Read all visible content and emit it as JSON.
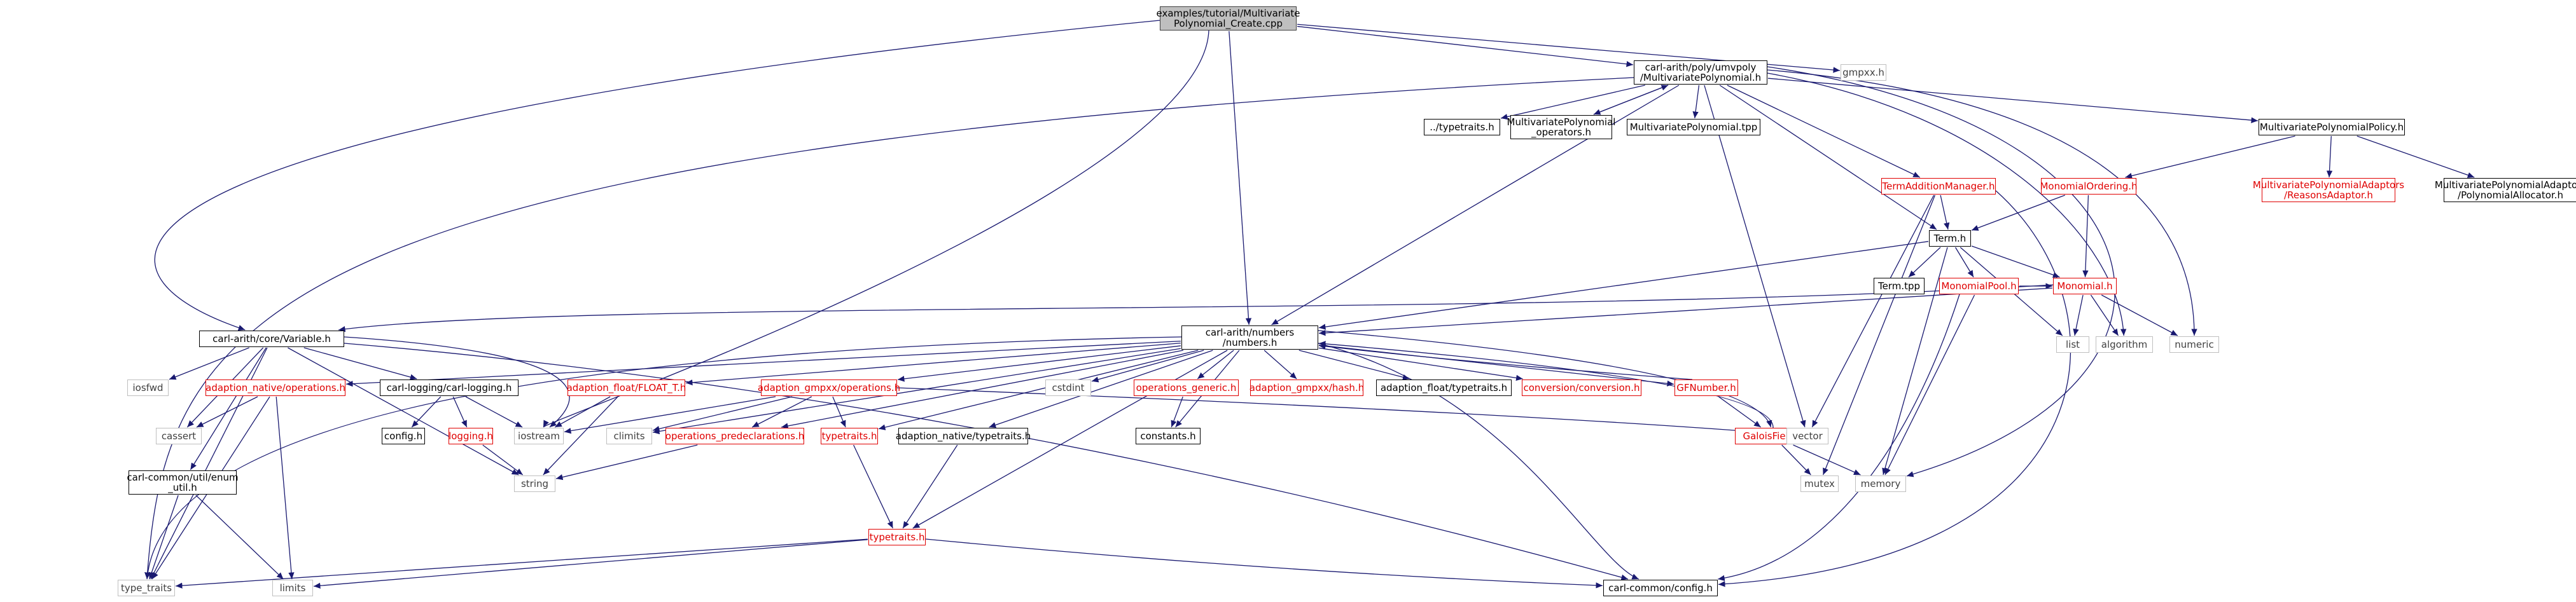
{
  "graph": {
    "edge_color": "#191970",
    "colors": {
      "black": "#000000",
      "red": "#e00000",
      "grey": "#bfbfbf",
      "root_fill": "#bfbfbf"
    },
    "nodes": [
      {
        "id": "root",
        "style": "root",
        "lines": [
          "examples/tutorial/Multivariate",
          "Polynomial_Create.cpp"
        ]
      },
      {
        "id": "mvpoly",
        "style": "black",
        "lines": [
          "carl-arith/poly/umvpoly",
          "/MultivariatePolynomial.h"
        ]
      },
      {
        "id": "gmpxx",
        "style": "grey",
        "lines": [
          "gmpxx.h"
        ]
      },
      {
        "id": "typetraits_rel",
        "style": "black",
        "lines": [
          "../typetraits.h"
        ]
      },
      {
        "id": "mvpoly_ops",
        "style": "black",
        "lines": [
          "MultivariatePolynomial",
          "_operators.h"
        ]
      },
      {
        "id": "mvpoly_tpp",
        "style": "black",
        "lines": [
          "MultivariatePolynomial.tpp"
        ]
      },
      {
        "id": "mvpolicy",
        "style": "black",
        "lines": [
          "MultivariatePolynomialPolicy.h"
        ]
      },
      {
        "id": "reasons_adaptor",
        "style": "red",
        "lines": [
          "MultivariatePolynomialAdaptors",
          "/ReasonsAdaptor.h"
        ]
      },
      {
        "id": "poly_allocator",
        "style": "black",
        "lines": [
          "MultivariatePolynomialAdaptors",
          "/PolynomialAllocator.h"
        ]
      },
      {
        "id": "termadd",
        "style": "red",
        "lines": [
          "TermAdditionManager.h"
        ]
      },
      {
        "id": "monordering",
        "style": "red",
        "lines": [
          "MonomialOrdering.h"
        ]
      },
      {
        "id": "term",
        "style": "black",
        "lines": [
          "Term.h"
        ]
      },
      {
        "id": "term_tpp",
        "style": "black",
        "lines": [
          "Term.tpp"
        ]
      },
      {
        "id": "monpool",
        "style": "red",
        "lines": [
          "MonomialPool.h"
        ]
      },
      {
        "id": "monomial",
        "style": "red",
        "lines": [
          "Monomial.h"
        ]
      },
      {
        "id": "list",
        "style": "grey",
        "lines": [
          "list"
        ]
      },
      {
        "id": "algorithm",
        "style": "grey",
        "lines": [
          "algorithm"
        ]
      },
      {
        "id": "numeric",
        "style": "grey",
        "lines": [
          "numeric"
        ]
      },
      {
        "id": "variable",
        "style": "black",
        "lines": [
          "carl-arith/core/Variable.h"
        ]
      },
      {
        "id": "numbers",
        "style": "black",
        "lines": [
          "carl-arith/numbers",
          "/numbers.h"
        ]
      },
      {
        "id": "iosfwd",
        "style": "grey",
        "lines": [
          "iosfwd"
        ]
      },
      {
        "id": "adapt_native_ops",
        "style": "red",
        "lines": [
          "adaption_native/operations.h"
        ]
      },
      {
        "id": "logging_h",
        "style": "black",
        "lines": [
          "carl-logging/carl-logging.h"
        ]
      },
      {
        "id": "adapt_float",
        "style": "red",
        "lines": [
          "adaption_float/FLOAT_T.h"
        ]
      },
      {
        "id": "adapt_gmpxx_ops",
        "style": "red",
        "lines": [
          "adaption_gmpxx/operations.h"
        ]
      },
      {
        "id": "cstdint",
        "style": "grey",
        "lines": [
          "cstdint"
        ]
      },
      {
        "id": "ops_generic",
        "style": "red",
        "lines": [
          "operations_generic.h"
        ]
      },
      {
        "id": "adapt_gmpxx_hash",
        "style": "red",
        "lines": [
          "adaption_gmpxx/hash.h"
        ]
      },
      {
        "id": "adapt_float_tt",
        "style": "black",
        "lines": [
          "adaption_float/typetraits.h"
        ]
      },
      {
        "id": "conversion",
        "style": "red",
        "lines": [
          "conversion/conversion.h"
        ]
      },
      {
        "id": "gfnumber",
        "style": "red",
        "lines": [
          "GFNumber.h"
        ]
      },
      {
        "id": "galoisfield",
        "style": "red",
        "lines": [
          "GaloisField.h"
        ]
      },
      {
        "id": "cassert",
        "style": "grey",
        "lines": [
          "cassert"
        ]
      },
      {
        "id": "config_h",
        "style": "black",
        "lines": [
          "config.h"
        ]
      },
      {
        "id": "logging",
        "style": "red",
        "lines": [
          "logging.h"
        ]
      },
      {
        "id": "iostream",
        "style": "grey",
        "lines": [
          "iostream"
        ]
      },
      {
        "id": "climits",
        "style": "grey",
        "lines": [
          "climits"
        ]
      },
      {
        "id": "ops_predecl",
        "style": "red",
        "lines": [
          "operations_predeclarations.h"
        ]
      },
      {
        "id": "typetraits_red",
        "style": "red",
        "lines": [
          "typetraits.h"
        ]
      },
      {
        "id": "adapt_native_tt",
        "style": "black",
        "lines": [
          "adaption_native/typetraits.h"
        ]
      },
      {
        "id": "constants",
        "style": "black",
        "lines": [
          "constants.h"
        ]
      },
      {
        "id": "vector",
        "style": "grey",
        "lines": [
          "vector"
        ]
      },
      {
        "id": "mutex",
        "style": "grey",
        "lines": [
          "mutex"
        ]
      },
      {
        "id": "memory",
        "style": "grey",
        "lines": [
          "memory"
        ]
      },
      {
        "id": "enum_util",
        "style": "black",
        "lines": [
          "carl-common/util/enum",
          "_util.h"
        ]
      },
      {
        "id": "string",
        "style": "grey",
        "lines": [
          "string"
        ]
      },
      {
        "id": "typetraits_bottom",
        "style": "red",
        "lines": [
          "typetraits.h"
        ]
      },
      {
        "id": "type_traits",
        "style": "grey",
        "lines": [
          "type_traits"
        ]
      },
      {
        "id": "limits",
        "style": "grey",
        "lines": [
          "limits"
        ]
      },
      {
        "id": "common_config",
        "style": "black",
        "lines": [
          "carl-common/config.h"
        ]
      }
    ],
    "edges": [
      [
        "root",
        "mvpoly"
      ],
      [
        "root",
        "gmpxx"
      ],
      [
        "root",
        "variable"
      ],
      [
        "root",
        "numbers"
      ],
      [
        "root",
        "iostream"
      ],
      [
        "mvpoly",
        "typetraits_rel"
      ],
      [
        "mvpoly",
        "mvpoly_ops"
      ],
      [
        "mvpoly_ops",
        "mvpoly"
      ],
      [
        "mvpoly",
        "mvpoly_tpp"
      ],
      [
        "mvpoly",
        "mvpolicy"
      ],
      [
        "mvpoly",
        "termadd"
      ],
      [
        "mvpoly",
        "term"
      ],
      [
        "mvpoly",
        "numbers"
      ],
      [
        "mvpoly",
        "algorithm"
      ],
      [
        "mvpoly",
        "numeric"
      ],
      [
        "mvpoly",
        "vector"
      ],
      [
        "mvpoly",
        "memory"
      ],
      [
        "mvpoly",
        "type_traits"
      ],
      [
        "mvpolicy",
        "reasons_adaptor"
      ],
      [
        "mvpolicy",
        "poly_allocator"
      ],
      [
        "mvpolicy",
        "monordering"
      ],
      [
        "termadd",
        "term"
      ],
      [
        "termadd",
        "vector"
      ],
      [
        "termadd",
        "mutex"
      ],
      [
        "termadd",
        "common_config"
      ],
      [
        "monordering",
        "term"
      ],
      [
        "monordering",
        "monomial"
      ],
      [
        "term",
        "term_tpp"
      ],
      [
        "term",
        "monpool"
      ],
      [
        "term",
        "monomial"
      ],
      [
        "term",
        "numbers"
      ],
      [
        "term",
        "memory"
      ],
      [
        "term",
        "list"
      ],
      [
        "monpool",
        "monomial"
      ],
      [
        "monpool",
        "memory"
      ],
      [
        "monpool",
        "common_config"
      ],
      [
        "monomial",
        "list"
      ],
      [
        "monomial",
        "algorithm"
      ],
      [
        "monomial",
        "numeric"
      ],
      [
        "monomial",
        "variable"
      ],
      [
        "monomial",
        "numbers"
      ],
      [
        "variable",
        "iosfwd"
      ],
      [
        "variable",
        "cassert"
      ],
      [
        "variable",
        "logging_h"
      ],
      [
        "variable",
        "iostream"
      ],
      [
        "variable",
        "enum_util"
      ],
      [
        "variable",
        "string"
      ],
      [
        "variable",
        "type_traits"
      ],
      [
        "variable",
        "common_config"
      ],
      [
        "numbers",
        "adapt_native_ops"
      ],
      [
        "numbers",
        "adapt_float"
      ],
      [
        "numbers",
        "adapt_gmpxx_ops"
      ],
      [
        "numbers",
        "cstdint"
      ],
      [
        "numbers",
        "ops_generic"
      ],
      [
        "numbers",
        "adapt_gmpxx_hash"
      ],
      [
        "numbers",
        "adapt_float_tt"
      ],
      [
        "numbers",
        "conversion"
      ],
      [
        "numbers",
        "gfnumber"
      ],
      [
        "numbers",
        "galoisfield"
      ],
      [
        "numbers",
        "ops_predecl"
      ],
      [
        "numbers",
        "typetraits_red"
      ],
      [
        "numbers",
        "adapt_native_tt"
      ],
      [
        "numbers",
        "constants"
      ],
      [
        "numbers",
        "climits"
      ],
      [
        "numbers",
        "typetraits_bottom"
      ],
      [
        "numbers",
        "type_traits"
      ],
      [
        "numbers",
        "common_config"
      ],
      [
        "gfnumber",
        "numbers"
      ],
      [
        "galoisfield",
        "numbers"
      ],
      [
        "gfnumber",
        "galoisfield"
      ],
      [
        "galoisfield",
        "mutex"
      ],
      [
        "galoisfield",
        "memory"
      ],
      [
        "adapt_native_ops",
        "cassert"
      ],
      [
        "adapt_native_ops",
        "limits"
      ],
      [
        "adapt_native_ops",
        "type_traits"
      ],
      [
        "logging_h",
        "config_h"
      ],
      [
        "logging_h",
        "logging"
      ],
      [
        "logging_h",
        "iostream"
      ],
      [
        "logging",
        "string"
      ],
      [
        "adapt_float",
        "iostream"
      ],
      [
        "adapt_float",
        "string"
      ],
      [
        "adapt_gmpxx_ops",
        "iostream"
      ],
      [
        "adapt_gmpxx_ops",
        "climits"
      ],
      [
        "adapt_gmpxx_ops",
        "ops_predecl"
      ],
      [
        "adapt_gmpxx_ops",
        "typetraits_red"
      ],
      [
        "adapt_gmpxx_ops",
        "vector"
      ],
      [
        "ops_generic",
        "constants"
      ],
      [
        "ops_predecl",
        "string"
      ],
      [
        "typetraits_red",
        "typetraits_bottom"
      ],
      [
        "adapt_native_tt",
        "typetraits_bottom"
      ],
      [
        "typetraits_bottom",
        "type_traits"
      ],
      [
        "typetraits_bottom",
        "limits"
      ],
      [
        "typetraits_bottom",
        "common_config"
      ],
      [
        "enum_util",
        "type_traits"
      ],
      [
        "enum_util",
        "limits"
      ]
    ]
  }
}
